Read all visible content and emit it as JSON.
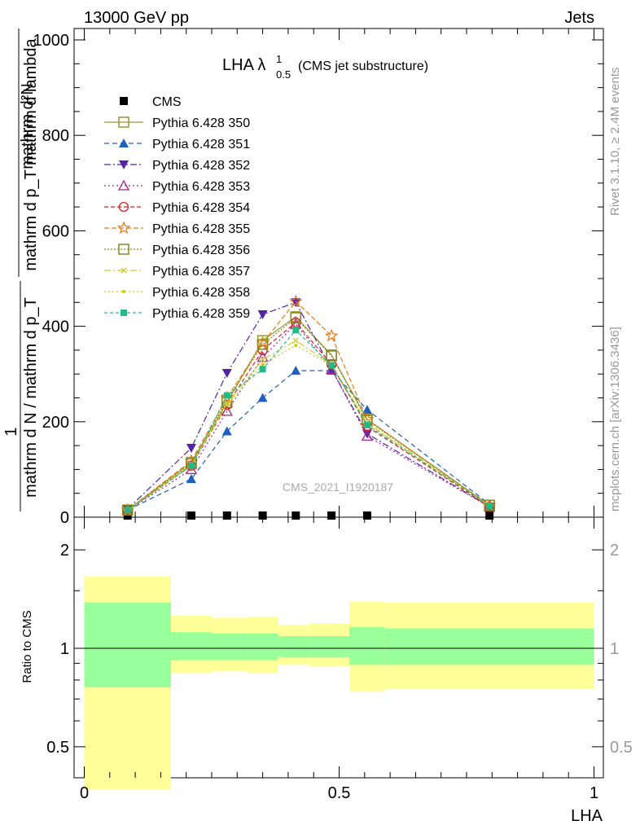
{
  "header": {
    "left": "13000 GeV pp",
    "right": "Jets"
  },
  "side": {
    "rivet": "Rivet 3.1.10, ≥ 2.4M events",
    "mcplots": "mcplots.cern.ch [arXiv:1306.3436]"
  },
  "watermark": "CMS_2021_I1920187",
  "chart_data": [
    {
      "type": "line",
      "title": "LHA λ",
      "title_sup": "1",
      "title_sub": "0.5",
      "subtitle": "(CMS jet substructure)",
      "ylabel_numer": "mathrm d²N",
      "ylabel_denom": "mathrm d p_T mathrm d lambda",
      "ylabel_pre_numer": "1",
      "ylabel_pre_denom": "mathrm d N / mathrm d p_T",
      "ylim": [
        0,
        1020
      ],
      "xlim": [
        -0.02,
        1.02
      ],
      "yticks": [
        "0",
        "200",
        "400",
        "600",
        "800",
        "1000"
      ],
      "legend_position": "top-left",
      "x": [
        0.085,
        0.21,
        0.28,
        0.35,
        0.415,
        0.485,
        0.555,
        0.795
      ],
      "series": [
        {
          "name": "CMS",
          "color": "#000000",
          "marker": "square",
          "dash": "none",
          "values": [
            0,
            1,
            1,
            2,
            2,
            2,
            1,
            0
          ]
        },
        {
          "name": "Pythia 6.428 350",
          "color": "#999933",
          "marker": "open-square",
          "dash": "none",
          "values": [
            15,
            115,
            240,
            370,
            420,
            340,
            205,
            25
          ]
        },
        {
          "name": "Pythia 6.428 351",
          "color": "#1f5fbf",
          "marker": "triangle-up",
          "dash": "6,4",
          "values": [
            15,
            80,
            180,
            250,
            307,
            307,
            225,
            27
          ]
        },
        {
          "name": "Pythia 6.428 352",
          "color": "#5522aa",
          "marker": "triangle-down",
          "dash": "8,3,2,3",
          "values": [
            17,
            145,
            302,
            425,
            450,
            310,
            175,
            22
          ]
        },
        {
          "name": "Pythia 6.428 353",
          "color": "#aa2288",
          "marker": "open-triangle",
          "dash": "2,3",
          "values": [
            14,
            100,
            222,
            335,
            405,
            310,
            170,
            21
          ]
        },
        {
          "name": "Pythia 6.428 354",
          "color": "#dd2222",
          "marker": "open-circle",
          "dash": "5,3",
          "values": [
            14,
            108,
            235,
            350,
            408,
            320,
            190,
            22
          ]
        },
        {
          "name": "Pythia 6.428 355",
          "color": "#ee7711",
          "marker": "open-star",
          "dash": "6,3",
          "values": [
            15,
            118,
            250,
            365,
            452,
            380,
            205,
            24
          ]
        },
        {
          "name": "Pythia 6.428 356",
          "color": "#888822",
          "marker": "open-square",
          "dash": "2,2",
          "values": [
            15,
            112,
            245,
            362,
            418,
            338,
            203,
            25
          ]
        },
        {
          "name": "Pythia 6.428 357",
          "color": "#cccc33",
          "marker": "small-x",
          "dash": "8,3,2,3",
          "values": [
            14,
            110,
            238,
            330,
            370,
            320,
            198,
            24
          ]
        },
        {
          "name": "Pythia 6.428 358",
          "color": "#cccc11",
          "marker": "small-dot",
          "dash": "2,3",
          "values": [
            14,
            108,
            235,
            320,
            360,
            318,
            195,
            24
          ]
        },
        {
          "name": "Pythia 6.428 359",
          "color": "#22bb88",
          "marker": "filled-square",
          "dash": "4,3",
          "values": [
            15,
            108,
            255,
            310,
            392,
            318,
            193,
            24
          ]
        }
      ]
    },
    {
      "type": "area",
      "ylabel": "Ratio to CMS",
      "xlabel": "LHA",
      "ylim": [
        0.35,
        2.3
      ],
      "xlim": [
        -0.02,
        1.02
      ],
      "yticks": [
        "0.5",
        "1",
        "2"
      ],
      "xticks": [
        "0",
        "0.5",
        "1"
      ],
      "bins": [
        {
          "lo": 0.0,
          "hi": 0.17,
          "inner": [
            0.76,
            1.38
          ],
          "outer": [
            0.37,
            1.66
          ]
        },
        {
          "lo": 0.17,
          "hi": 0.25,
          "inner": [
            0.92,
            1.12
          ],
          "outer": [
            0.84,
            1.26
          ]
        },
        {
          "lo": 0.25,
          "hi": 0.32,
          "inner": [
            0.92,
            1.11
          ],
          "outer": [
            0.85,
            1.24
          ]
        },
        {
          "lo": 0.32,
          "hi": 0.38,
          "inner": [
            0.92,
            1.11
          ],
          "outer": [
            0.84,
            1.25
          ]
        },
        {
          "lo": 0.38,
          "hi": 0.44,
          "inner": [
            0.94,
            1.09
          ],
          "outer": [
            0.89,
            1.18
          ]
        },
        {
          "lo": 0.44,
          "hi": 0.52,
          "inner": [
            0.94,
            1.09
          ],
          "outer": [
            0.88,
            1.19
          ]
        },
        {
          "lo": 0.52,
          "hi": 0.59,
          "inner": [
            0.89,
            1.16
          ],
          "outer": [
            0.74,
            1.39
          ]
        },
        {
          "lo": 0.59,
          "hi": 1.0,
          "inner": [
            0.89,
            1.15
          ],
          "outer": [
            0.75,
            1.38
          ]
        }
      ]
    }
  ]
}
